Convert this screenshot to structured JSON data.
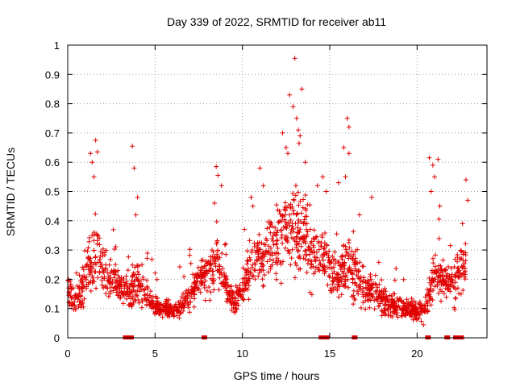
{
  "chart_data": {
    "type": "scatter",
    "title": "Day 339 of 2022, SRMTID for receiver ab11",
    "xlabel": "GPS time / hours",
    "ylabel": "SRMTID / TECUs",
    "xlim": [
      0,
      24
    ],
    "ylim": [
      0,
      1
    ],
    "xticks": [
      0,
      5,
      10,
      15,
      20
    ],
    "yticks": [
      0,
      0.1,
      0.2,
      0.3,
      0.4,
      0.5,
      0.6,
      0.7,
      0.8,
      0.9,
      1
    ],
    "grid": true,
    "marker": "plus",
    "color": "#e00000",
    "series": [
      {
        "name": "SRMTID",
        "profile": [
          [
            0.0,
            0.17,
            0.06
          ],
          [
            0.5,
            0.12,
            0.05
          ],
          [
            1.0,
            0.2,
            0.08
          ],
          [
            1.5,
            0.3,
            0.12
          ],
          [
            2.0,
            0.24,
            0.08
          ],
          [
            2.5,
            0.2,
            0.06
          ],
          [
            3.0,
            0.18,
            0.06
          ],
          [
            3.5,
            0.15,
            0.05
          ],
          [
            4.0,
            0.2,
            0.08
          ],
          [
            4.5,
            0.14,
            0.05
          ],
          [
            5.0,
            0.11,
            0.03
          ],
          [
            5.5,
            0.1,
            0.03
          ],
          [
            6.0,
            0.1,
            0.03
          ],
          [
            6.5,
            0.1,
            0.03
          ],
          [
            7.0,
            0.14,
            0.05
          ],
          [
            7.5,
            0.2,
            0.06
          ],
          [
            8.0,
            0.22,
            0.07
          ],
          [
            8.5,
            0.27,
            0.08
          ],
          [
            9.0,
            0.18,
            0.06
          ],
          [
            9.5,
            0.13,
            0.04
          ],
          [
            10.0,
            0.16,
            0.06
          ],
          [
            10.5,
            0.24,
            0.07
          ],
          [
            11.0,
            0.27,
            0.08
          ],
          [
            11.5,
            0.3,
            0.1
          ],
          [
            12.0,
            0.33,
            0.12
          ],
          [
            12.5,
            0.37,
            0.14
          ],
          [
            13.0,
            0.4,
            0.16
          ],
          [
            13.5,
            0.36,
            0.13
          ],
          [
            14.0,
            0.3,
            0.1
          ],
          [
            14.5,
            0.28,
            0.09
          ],
          [
            15.0,
            0.24,
            0.08
          ],
          [
            15.5,
            0.2,
            0.07
          ],
          [
            16.0,
            0.25,
            0.1
          ],
          [
            16.5,
            0.22,
            0.08
          ],
          [
            17.0,
            0.15,
            0.05
          ],
          [
            17.5,
            0.17,
            0.06
          ],
          [
            18.0,
            0.14,
            0.05
          ],
          [
            18.5,
            0.11,
            0.04
          ],
          [
            19.0,
            0.1,
            0.04
          ],
          [
            19.5,
            0.1,
            0.03
          ],
          [
            20.0,
            0.09,
            0.03
          ],
          [
            20.5,
            0.1,
            0.04
          ],
          [
            21.0,
            0.22,
            0.07
          ],
          [
            21.5,
            0.2,
            0.06
          ],
          [
            22.0,
            0.18,
            0.05
          ],
          [
            22.5,
            0.22,
            0.1
          ],
          [
            22.8,
            0.24,
            0.1
          ]
        ],
        "peaks": [
          [
            1.6,
            0.675
          ],
          [
            1.7,
            0.635
          ],
          [
            1.3,
            0.63
          ],
          [
            1.4,
            0.6
          ],
          [
            1.5,
            0.55
          ],
          [
            3.7,
            0.655
          ],
          [
            3.8,
            0.58
          ],
          [
            4.0,
            0.48
          ],
          [
            3.9,
            0.42
          ],
          [
            8.5,
            0.585
          ],
          [
            8.6,
            0.555
          ],
          [
            8.8,
            0.52
          ],
          [
            8.4,
            0.46
          ],
          [
            10.5,
            0.48
          ],
          [
            10.6,
            0.45
          ],
          [
            11.0,
            0.58
          ],
          [
            11.2,
            0.52
          ],
          [
            12.3,
            0.7
          ],
          [
            12.5,
            0.65
          ],
          [
            12.7,
            0.83
          ],
          [
            12.9,
            0.79
          ],
          [
            13.0,
            0.955
          ],
          [
            13.1,
            0.75
          ],
          [
            13.2,
            0.71
          ],
          [
            13.4,
            0.85
          ],
          [
            13.3,
            0.69
          ],
          [
            13.6,
            0.6
          ],
          [
            12.6,
            0.63
          ],
          [
            14.6,
            0.55
          ],
          [
            14.8,
            0.5
          ],
          [
            14.3,
            0.52
          ],
          [
            15.5,
            0.53
          ],
          [
            15.9,
            0.55
          ],
          [
            16.0,
            0.75
          ],
          [
            16.1,
            0.72
          ],
          [
            15.8,
            0.65
          ],
          [
            16.1,
            0.63
          ],
          [
            16.7,
            0.42
          ],
          [
            17.4,
            0.48
          ],
          [
            20.7,
            0.615
          ],
          [
            20.9,
            0.59
          ],
          [
            21.2,
            0.61
          ],
          [
            21.0,
            0.55
          ],
          [
            20.8,
            0.5
          ],
          [
            21.3,
            0.45
          ],
          [
            22.8,
            0.54
          ],
          [
            22.9,
            0.47
          ],
          [
            22.6,
            0.39
          ]
        ],
        "zeros": [
          3.3,
          3.4,
          3.5,
          3.6,
          7.8,
          14.5,
          14.6,
          14.7,
          14.8,
          16.4,
          20.6,
          21.7,
          22.2,
          22.3,
          22.5
        ]
      }
    ]
  }
}
